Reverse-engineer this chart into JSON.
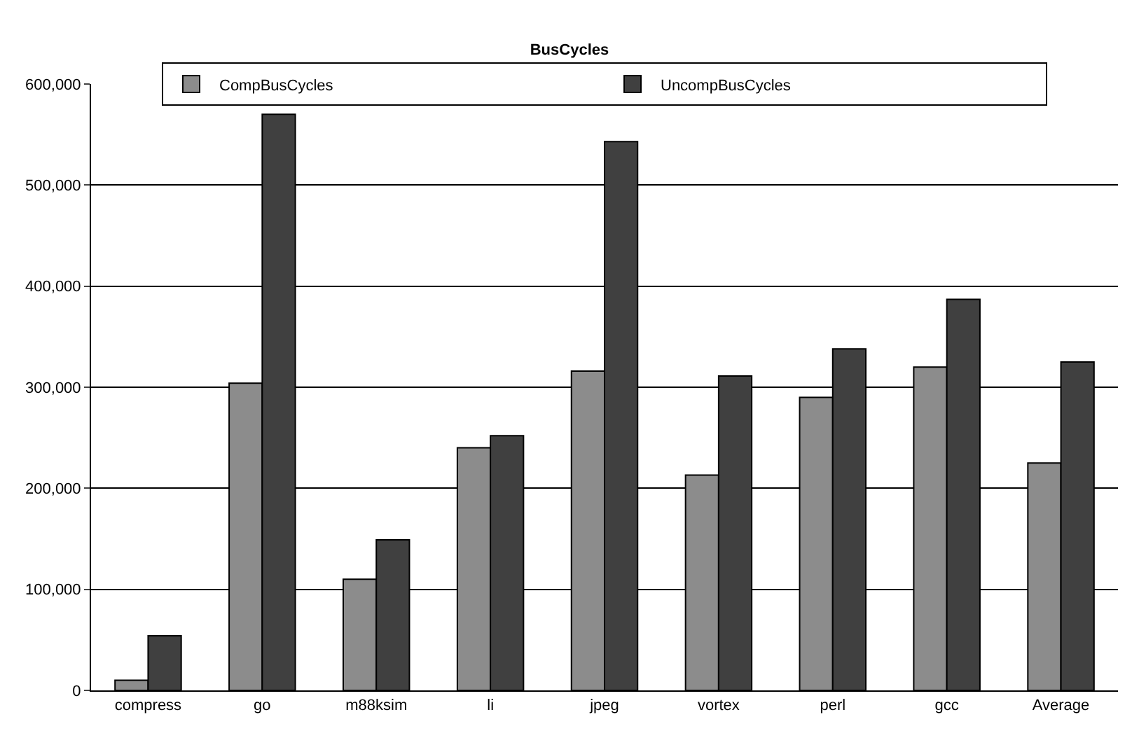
{
  "chart_data": {
    "type": "bar",
    "title": "BusCycles",
    "categories": [
      "compress",
      "go",
      "m88ksim",
      "li",
      "jpeg",
      "vortex",
      "perl",
      "gcc",
      "Average"
    ],
    "series": [
      {
        "name": "CompBusCycles",
        "color": "#8c8c8c",
        "values": [
          10000,
          304000,
          110000,
          240000,
          316000,
          213000,
          290000,
          320000,
          225000
        ]
      },
      {
        "name": "UncompBusCycles",
        "color": "#404040",
        "values": [
          54000,
          570000,
          149000,
          252000,
          543000,
          311000,
          338000,
          387000,
          325000
        ]
      }
    ],
    "ylim": [
      0,
      600000
    ],
    "yticks": [
      {
        "value": 0,
        "label": "0"
      },
      {
        "value": 100000,
        "label": "100,000"
      },
      {
        "value": 200000,
        "label": "200,000"
      },
      {
        "value": 300000,
        "label": "300,000"
      },
      {
        "value": 400000,
        "label": "400,000"
      },
      {
        "value": 500000,
        "label": "500,000"
      },
      {
        "value": 600000,
        "label": "600,000"
      }
    ],
    "grid": "y",
    "legend": "top"
  }
}
